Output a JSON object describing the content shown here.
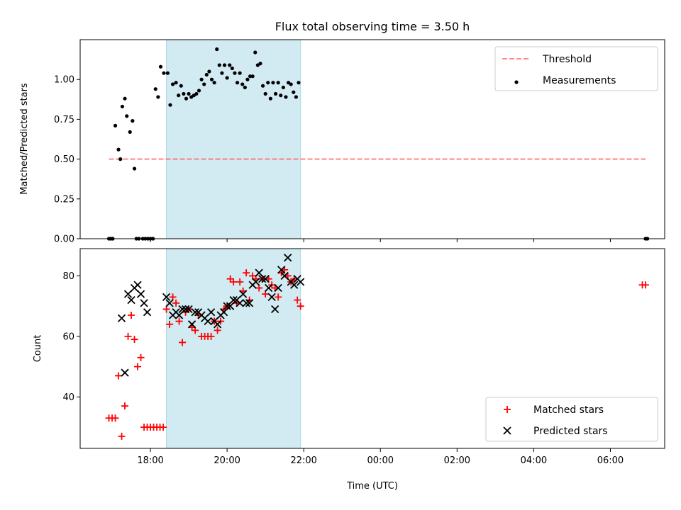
{
  "chart_data": [
    {
      "type": "scatter",
      "title": "Flux total observing time = 3.50 h",
      "xlabel": "",
      "ylabel": "Matched/Predicted stars",
      "ylim": [
        0,
        1.25
      ],
      "xlim": [
        "16:10",
        "07:25"
      ],
      "x_ticks": [
        "18:00",
        "20:00",
        "22:00",
        "00:00",
        "02:00",
        "04:00",
        "06:00"
      ],
      "x_tick_labels_shown": false,
      "y_ticks": [
        0.0,
        0.25,
        0.5,
        0.75,
        1.0
      ],
      "y_tick_labels": [
        "0.00",
        "0.25",
        "0.50",
        "0.75",
        "1.00"
      ],
      "shaded_span": {
        "x": [
          "18:25",
          "21:55"
        ],
        "color": "#add8e6"
      },
      "legend": {
        "position": "top-right",
        "entries": [
          "Threshold",
          "Measurements"
        ]
      },
      "series": [
        {
          "name": "Threshold",
          "kind": "dashed-line",
          "color": "#ff6666",
          "x": [
            "16:55",
            "06:55"
          ],
          "y": [
            0.5,
            0.5
          ]
        },
        {
          "name": "Measurements",
          "kind": "dot",
          "color": "#000000",
          "x": [
            "16:55",
            "16:58",
            "17:01",
            "17:05",
            "17:10",
            "17:13",
            "17:16",
            "17:20",
            "17:23",
            "17:28",
            "17:32",
            "17:35",
            "17:38",
            "17:42",
            "17:48",
            "17:52",
            "17:56",
            "18:00",
            "18:04",
            "18:08",
            "18:12",
            "18:16",
            "18:21",
            "18:27",
            "18:31",
            "18:35",
            "18:40",
            "18:44",
            "18:48",
            "18:52",
            "18:56",
            "19:00",
            "19:04",
            "19:08",
            "19:12",
            "19:16",
            "19:20",
            "19:24",
            "19:28",
            "19:32",
            "19:36",
            "19:40",
            "19:44",
            "19:48",
            "19:52",
            "19:56",
            "20:00",
            "20:04",
            "20:08",
            "20:12",
            "20:16",
            "20:20",
            "20:24",
            "20:28",
            "20:32",
            "20:36",
            "20:40",
            "20:44",
            "20:48",
            "20:52",
            "20:56",
            "21:00",
            "21:04",
            "21:08",
            "21:12",
            "21:16",
            "21:20",
            "21:24",
            "21:28",
            "21:32",
            "21:36",
            "21:40",
            "21:44",
            "21:48",
            "21:52",
            "06:55",
            "06:58"
          ],
          "y": [
            0,
            0,
            0,
            0.71,
            0.56,
            0.5,
            0.83,
            0.88,
            0.77,
            0.67,
            0.74,
            0.44,
            0,
            0,
            0,
            0,
            0,
            0,
            0,
            0.94,
            0.89,
            1.08,
            1.04,
            1.04,
            0.84,
            0.97,
            0.98,
            0.9,
            0.96,
            0.91,
            0.88,
            0.91,
            0.89,
            0.9,
            0.91,
            0.93,
            1.0,
            0.97,
            1.03,
            1.05,
            1.0,
            0.98,
            1.19,
            1.09,
            1.04,
            1.09,
            1.01,
            1.09,
            1.07,
            1.04,
            0.98,
            1.04,
            0.97,
            0.95,
            1.0,
            1.02,
            1.02,
            1.17,
            1.09,
            1.1,
            0.96,
            0.91,
            0.98,
            0.88,
            0.98,
            0.91,
            0.98,
            0.9,
            0.95,
            0.89,
            0.98,
            0.97,
            0.92,
            0.89,
            0.98,
            0,
            0
          ]
        }
      ]
    },
    {
      "type": "scatter",
      "title": "",
      "xlabel": "Time (UTC)",
      "ylabel": "Count",
      "ylim": [
        23,
        89
      ],
      "xlim": [
        "16:10",
        "07:25"
      ],
      "x_ticks": [
        "18:00",
        "20:00",
        "22:00",
        "00:00",
        "02:00",
        "04:00",
        "06:00"
      ],
      "x_tick_labels": [
        "18:00",
        "20:00",
        "22:00",
        "00:00",
        "02:00",
        "04:00",
        "06:00"
      ],
      "y_ticks": [
        40,
        60,
        80
      ],
      "y_tick_labels": [
        "40",
        "60",
        "80"
      ],
      "shaded_span": {
        "x": [
          "18:25",
          "21:55"
        ],
        "color": "#add8e6"
      },
      "legend": {
        "position": "bottom-right",
        "entries": [
          "Matched stars",
          "Predicted stars"
        ]
      },
      "series": [
        {
          "name": "Matched stars",
          "kind": "plus",
          "color": "#ff0000",
          "x": [
            "16:55",
            "17:00",
            "17:05",
            "17:10",
            "17:15",
            "17:20",
            "17:25",
            "17:30",
            "17:35",
            "17:40",
            "17:45",
            "17:50",
            "17:55",
            "18:00",
            "18:05",
            "18:10",
            "18:15",
            "18:20",
            "18:25",
            "18:30",
            "18:35",
            "18:40",
            "18:45",
            "18:50",
            "18:55",
            "19:00",
            "19:05",
            "19:10",
            "19:15",
            "19:20",
            "19:25",
            "19:30",
            "19:35",
            "19:40",
            "19:45",
            "19:50",
            "19:55",
            "20:00",
            "20:05",
            "20:10",
            "20:15",
            "20:20",
            "20:25",
            "20:30",
            "20:35",
            "20:40",
            "20:45",
            "20:50",
            "20:55",
            "21:00",
            "21:05",
            "21:10",
            "21:15",
            "21:20",
            "21:25",
            "21:30",
            "21:35",
            "21:40",
            "21:45",
            "21:50",
            "21:55",
            "06:50",
            "06:55"
          ],
          "y": [
            33,
            33,
            33,
            47,
            27,
            37,
            60,
            67,
            59,
            50,
            53,
            30,
            30,
            30,
            30,
            30,
            30,
            30,
            69,
            64,
            73,
            71,
            65,
            58,
            68,
            69,
            63,
            62,
            67,
            60,
            60,
            60,
            60,
            65,
            62,
            65,
            69,
            70,
            79,
            78,
            71,
            78,
            75,
            81,
            72,
            80,
            79,
            76,
            79,
            74,
            79,
            77,
            76,
            73,
            81,
            82,
            80,
            78,
            79,
            72,
            70,
            77,
            77
          ]
        },
        {
          "name": "Predicted stars",
          "kind": "x",
          "color": "#000000",
          "x": [
            "17:15",
            "17:20",
            "17:25",
            "17:30",
            "17:35",
            "17:40",
            "17:45",
            "17:50",
            "17:55",
            "18:25",
            "18:30",
            "18:35",
            "18:40",
            "18:45",
            "18:50",
            "18:55",
            "19:00",
            "19:05",
            "19:10",
            "19:15",
            "19:20",
            "19:25",
            "19:30",
            "19:35",
            "19:40",
            "19:45",
            "19:50",
            "19:55",
            "20:00",
            "20:05",
            "20:10",
            "20:15",
            "20:20",
            "20:25",
            "20:30",
            "20:35",
            "20:40",
            "20:45",
            "20:50",
            "20:55",
            "21:00",
            "21:05",
            "21:10",
            "21:15",
            "21:20",
            "21:25",
            "21:30",
            "21:35",
            "21:40",
            "21:45",
            "21:50",
            "21:55"
          ],
          "y": [
            66,
            48,
            74,
            72,
            76,
            77,
            74,
            71,
            68,
            73,
            71,
            67,
            68,
            67,
            69,
            69,
            69,
            64,
            68,
            68,
            67,
            66,
            65,
            68,
            65,
            64,
            67,
            68,
            70,
            70,
            72,
            72,
            71,
            74,
            71,
            71,
            77,
            78,
            81,
            79,
            79,
            76,
            73,
            69,
            76,
            82,
            80,
            86,
            78,
            77,
            79,
            78
          ]
        }
      ]
    }
  ]
}
